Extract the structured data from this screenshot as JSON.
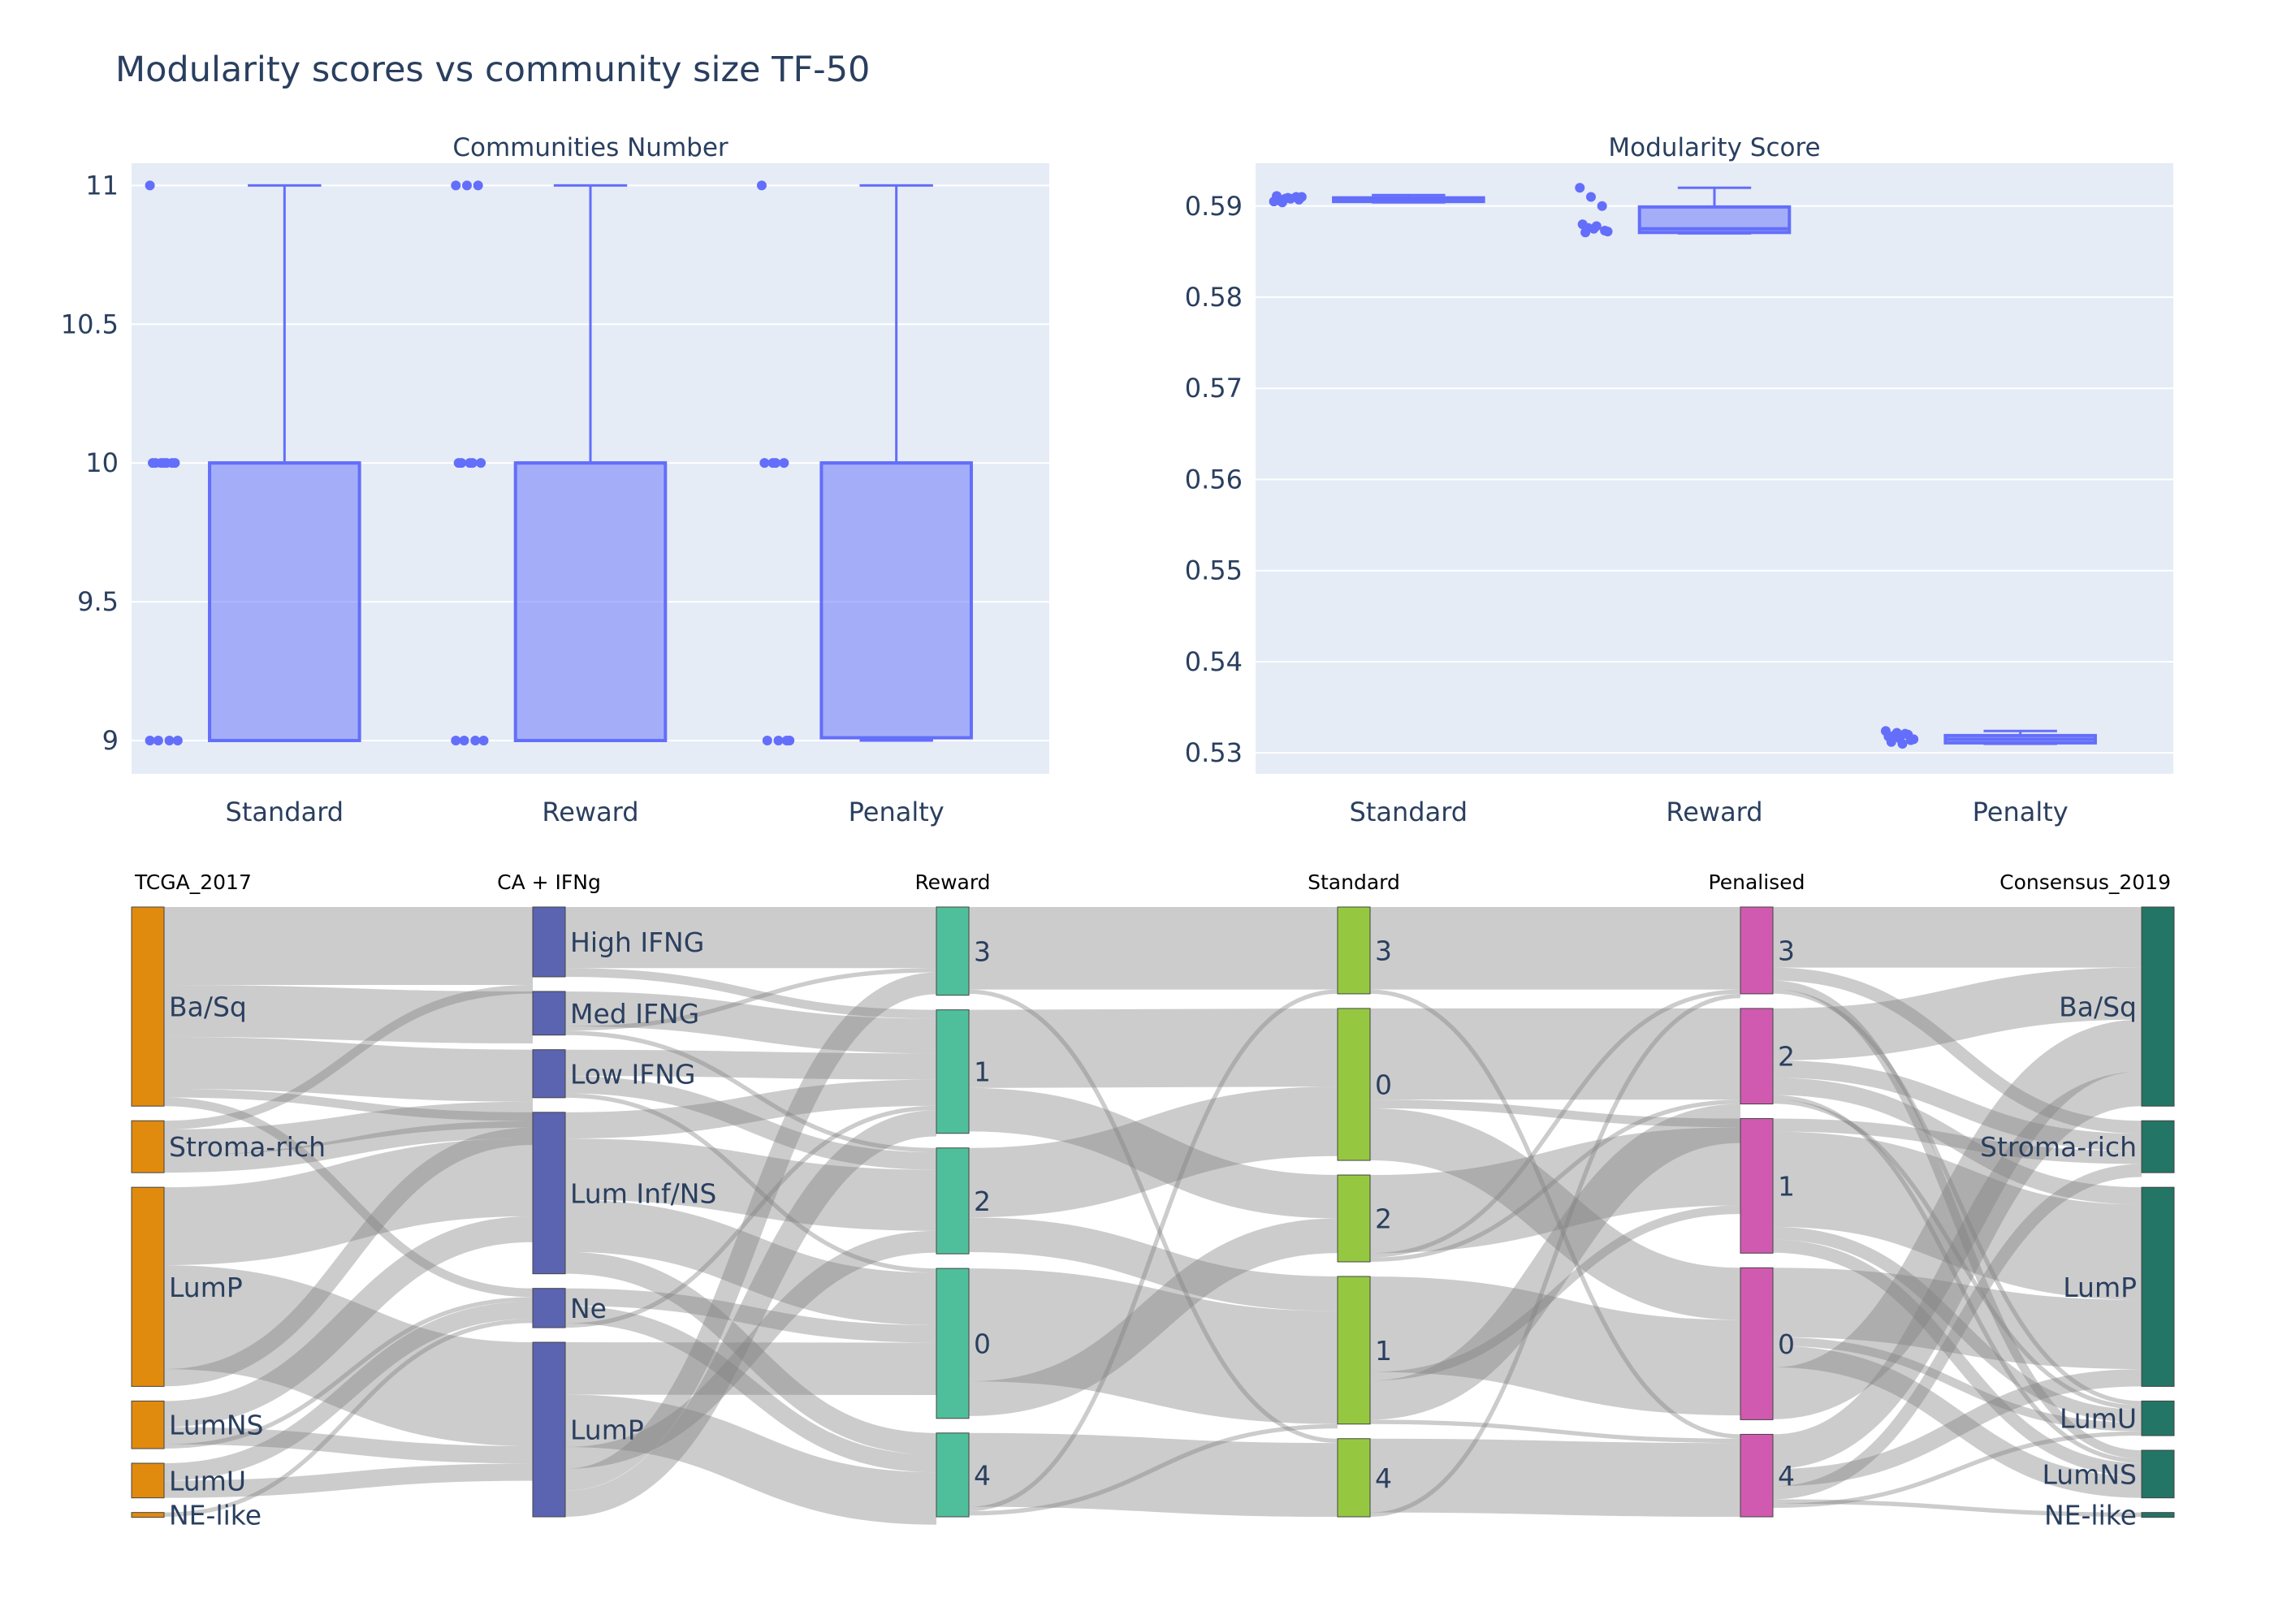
{
  "figure": {
    "title": "Modularity scores vs community size TF-50"
  },
  "chart_data": [
    {
      "type": "box",
      "title": "Communities Number",
      "categories": [
        "Standard",
        "Reward",
        "Penalty"
      ],
      "ylim": [
        8.88,
        11.08
      ],
      "yticks": [
        9,
        9.5,
        10,
        10.5,
        11
      ],
      "ytick_labels": [
        "9",
        "9.5",
        "10",
        "10.5",
        "11"
      ],
      "grid": true,
      "color": "#636efa",
      "boxes": [
        {
          "name": "Standard",
          "min": 9,
          "q1": 9,
          "median": 10,
          "q3": 10,
          "max": 11,
          "points": [
            11,
            10,
            10,
            10,
            10,
            10,
            10,
            10,
            9,
            9,
            9,
            9
          ]
        },
        {
          "name": "Reward",
          "min": 9,
          "q1": 9,
          "median": 10,
          "q3": 10,
          "max": 11,
          "points": [
            11,
            11,
            11,
            10,
            10,
            10,
            10,
            10,
            9,
            9,
            9,
            9
          ]
        },
        {
          "name": "Penalty",
          "min": 9,
          "q1": 9.01,
          "median": 10,
          "q3": 10,
          "max": 11,
          "points": [
            11,
            10,
            10,
            10,
            10,
            9,
            9,
            9,
            9
          ]
        }
      ]
    },
    {
      "type": "box",
      "title": "Modularity Score",
      "categories": [
        "Standard",
        "Reward",
        "Penalty"
      ],
      "ylim": [
        0.5277,
        0.5947
      ],
      "yticks": [
        0.53,
        0.54,
        0.55,
        0.56,
        0.57,
        0.58,
        0.59
      ],
      "ytick_labels": [
        "0.53",
        "0.54",
        "0.55",
        "0.56",
        "0.57",
        "0.58",
        "0.59"
      ],
      "grid": true,
      "color": "#636efa",
      "boxes": [
        {
          "name": "Standard",
          "min": 0.5904,
          "q1": 0.5905,
          "median": 0.5907,
          "q3": 0.5909,
          "max": 0.5912,
          "points": [
            0.5905,
            0.5908,
            0.591,
            0.5911,
            0.5909,
            0.5907,
            0.5906,
            0.5908,
            0.591,
            0.5904
          ]
        },
        {
          "name": "Reward",
          "min": 0.587,
          "q1": 0.5871,
          "median": 0.5875,
          "q3": 0.5899,
          "max": 0.592,
          "points": [
            0.592,
            0.591,
            0.59,
            0.588,
            0.5875,
            0.5873,
            0.5871,
            0.5878,
            0.5872,
            0.5876
          ]
        },
        {
          "name": "Penalty",
          "min": 0.531,
          "q1": 0.5311,
          "median": 0.5315,
          "q3": 0.5319,
          "max": 0.5324,
          "points": [
            0.5324,
            0.5322,
            0.532,
            0.5318,
            0.5316,
            0.5314,
            0.5312,
            0.531,
            0.5315,
            0.5319,
            0.5321
          ]
        }
      ]
    },
    {
      "type": "sankey",
      "link_color": "rgba(128,128,128,0.4)",
      "columns": [
        {
          "header": "TCGA_2017",
          "color": "#e08a0e",
          "label_side": "right",
          "nodes": [
            {
              "label": "Ba/Sq",
              "weight": 23
            },
            {
              "label": "Stroma-rich",
              "weight": 6
            },
            {
              "label": "LumP",
              "weight": 23
            },
            {
              "label": "LumNS",
              "weight": 5.5
            },
            {
              "label": "LumU",
              "weight": 4
            },
            {
              "label": "NE-like",
              "weight": 0.5
            }
          ]
        },
        {
          "header": "CA + IFNg",
          "color": "#5a64b0",
          "label_side": "right",
          "nodes": [
            {
              "label": "High IFNG",
              "weight": 8
            },
            {
              "label": "Med IFNG",
              "weight": 5
            },
            {
              "label": "Low IFNG",
              "weight": 5.5
            },
            {
              "label": "Lum Inf/NS",
              "weight": 18.5
            },
            {
              "label": "Ne",
              "weight": 4.5
            },
            {
              "label": "LumP",
              "weight": 20
            }
          ]
        },
        {
          "header": "Reward",
          "color": "#4fbf9b",
          "label_side": "right",
          "nodes": [
            {
              "label": "3",
              "weight": 10
            },
            {
              "label": "1",
              "weight": 14
            },
            {
              "label": "2",
              "weight": 12
            },
            {
              "label": "0",
              "weight": 17
            },
            {
              "label": "4",
              "weight": 9.5
            }
          ]
        },
        {
          "header": "Standard",
          "color": "#95c840",
          "label_side": "right",
          "nodes": [
            {
              "label": "3",
              "weight": 10
            },
            {
              "label": "0",
              "weight": 17.5
            },
            {
              "label": "2",
              "weight": 10
            },
            {
              "label": "1",
              "weight": 17
            },
            {
              "label": "4",
              "weight": 9
            }
          ]
        },
        {
          "header": "Penalised",
          "color": "#d05ab0",
          "label_side": "right",
          "nodes": [
            {
              "label": "3",
              "weight": 10
            },
            {
              "label": "2",
              "weight": 11
            },
            {
              "label": "1",
              "weight": 15.5
            },
            {
              "label": "0",
              "weight": 17.5
            },
            {
              "label": "4",
              "weight": 9.5
            }
          ]
        },
        {
          "header": "Consensus_2019",
          "color": "#237565",
          "label_side": "left",
          "nodes": [
            {
              "label": "Ba/Sq",
              "weight": 23
            },
            {
              "label": "Stroma-rich",
              "weight": 6
            },
            {
              "label": "LumP",
              "weight": 23
            },
            {
              "label": "LumU",
              "weight": 4
            },
            {
              "label": "LumNS",
              "weight": 5.5
            },
            {
              "label": "NE-like",
              "weight": 0.5
            }
          ]
        }
      ],
      "links": [
        [
          0,
          0,
          0,
          0,
          9
        ],
        [
          0,
          0,
          0,
          1,
          6
        ],
        [
          0,
          0,
          0,
          2,
          6
        ],
        [
          0,
          0,
          0,
          3,
          1
        ],
        [
          0,
          0,
          0,
          4,
          1
        ],
        [
          0,
          1,
          0,
          0,
          1
        ],
        [
          0,
          1,
          0,
          2,
          3
        ],
        [
          0,
          1,
          0,
          3,
          2
        ],
        [
          0,
          2,
          0,
          3,
          9
        ],
        [
          0,
          2,
          0,
          5,
          12
        ],
        [
          0,
          2,
          0,
          2,
          2
        ],
        [
          0,
          3,
          0,
          3,
          3
        ],
        [
          0,
          3,
          0,
          5,
          2
        ],
        [
          0,
          3,
          0,
          4,
          0.5
        ],
        [
          0,
          4,
          0,
          4,
          2
        ],
        [
          0,
          4,
          0,
          5,
          2
        ],
        [
          0,
          5,
          0,
          4,
          0.5
        ],
        [
          1,
          0,
          0,
          0,
          7
        ],
        [
          1,
          0,
          0,
          1,
          1
        ],
        [
          1,
          1,
          0,
          1,
          4
        ],
        [
          1,
          1,
          0,
          0,
          0.5
        ],
        [
          1,
          1,
          0,
          2,
          0.5
        ],
        [
          1,
          2,
          0,
          1,
          3
        ],
        [
          1,
          2,
          0,
          2,
          2
        ],
        [
          1,
          2,
          0,
          3,
          0.5
        ],
        [
          1,
          3,
          0,
          1,
          3
        ],
        [
          1,
          3,
          0,
          2,
          7
        ],
        [
          1,
          3,
          0,
          3,
          6
        ],
        [
          1,
          3,
          0,
          4,
          2.5
        ],
        [
          1,
          4,
          0,
          3,
          2
        ],
        [
          1,
          4,
          0,
          4,
          2
        ],
        [
          1,
          4,
          0,
          1,
          0.5
        ],
        [
          1,
          5,
          0,
          3,
          6
        ],
        [
          1,
          5,
          0,
          4,
          6
        ],
        [
          1,
          5,
          0,
          2,
          2.5
        ],
        [
          1,
          5,
          0,
          0,
          2.5
        ],
        [
          1,
          5,
          0,
          1,
          3
        ],
        [
          2,
          0,
          0,
          0,
          9.5
        ],
        [
          2,
          0,
          0,
          4,
          0.5
        ],
        [
          2,
          1,
          0,
          1,
          9
        ],
        [
          2,
          1,
          0,
          2,
          5
        ],
        [
          2,
          2,
          0,
          1,
          8
        ],
        [
          2,
          2,
          0,
          3,
          4
        ],
        [
          2,
          3,
          0,
          3,
          13
        ],
        [
          2,
          3,
          0,
          2,
          4
        ],
        [
          2,
          4,
          0,
          4,
          8.5
        ],
        [
          2,
          4,
          0,
          0,
          0.5
        ],
        [
          2,
          4,
          0,
          3,
          0.5
        ],
        [
          3,
          0,
          0,
          0,
          9.5
        ],
        [
          3,
          0,
          0,
          4,
          0.5
        ],
        [
          3,
          1,
          0,
          1,
          10.5
        ],
        [
          3,
          1,
          0,
          2,
          1
        ],
        [
          3,
          1,
          0,
          3,
          6
        ],
        [
          3,
          2,
          0,
          2,
          9
        ],
        [
          3,
          2,
          0,
          0,
          0.5
        ],
        [
          3,
          2,
          0,
          1,
          0.5
        ],
        [
          3,
          3,
          0,
          3,
          11
        ],
        [
          3,
          3,
          0,
          2,
          1
        ],
        [
          3,
          3,
          0,
          1,
          4.5
        ],
        [
          3,
          3,
          0,
          4,
          0.5
        ],
        [
          3,
          4,
          0,
          4,
          8.5
        ],
        [
          3,
          4,
          0,
          0,
          0.5
        ],
        [
          4,
          0,
          0,
          0,
          7
        ],
        [
          4,
          0,
          0,
          1,
          1.5
        ],
        [
          4,
          0,
          0,
          4,
          1
        ],
        [
          4,
          0,
          0,
          3,
          0.5
        ],
        [
          4,
          1,
          0,
          0,
          6
        ],
        [
          4,
          1,
          0,
          1,
          2
        ],
        [
          4,
          1,
          0,
          2,
          2
        ],
        [
          4,
          1,
          0,
          4,
          0.5
        ],
        [
          4,
          1,
          0,
          3,
          0.5
        ],
        [
          4,
          2,
          0,
          1,
          1.5
        ],
        [
          4,
          2,
          0,
          2,
          11
        ],
        [
          4,
          2,
          0,
          3,
          1.5
        ],
        [
          4,
          2,
          0,
          4,
          1.5
        ],
        [
          4,
          3,
          0,
          2,
          8
        ],
        [
          4,
          3,
          0,
          3,
          1
        ],
        [
          4,
          3,
          0,
          4,
          2.5
        ],
        [
          4,
          3,
          0,
          0,
          6
        ],
        [
          4,
          4,
          0,
          0,
          4
        ],
        [
          4,
          4,
          0,
          2,
          2
        ],
        [
          4,
          4,
          0,
          1,
          1.5
        ],
        [
          4,
          4,
          0,
          5,
          0.5
        ],
        [
          4,
          4,
          0,
          3,
          0.5
        ]
      ]
    }
  ]
}
